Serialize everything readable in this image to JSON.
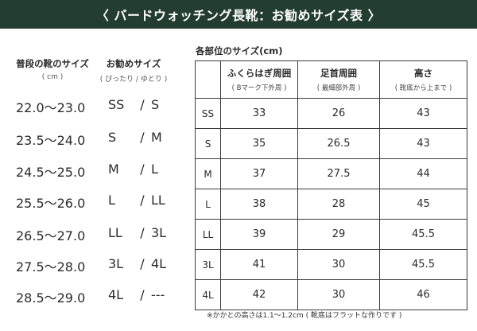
{
  "title": "〈 バードウォッチング長靴：お勧めサイズ表 〉",
  "left_table": {
    "header_size": "普段の靴のサイズ",
    "header_size_unit": "( cm )",
    "header_recommended": "お勧めサイズ",
    "header_recommended_sub": "( ぴったり / ゆとり )",
    "separator": "/",
    "rows": [
      {
        "cm": "22.0〜23.0",
        "snug": "SS",
        "loose": "S"
      },
      {
        "cm": "23.5〜24.0",
        "snug": "S",
        "loose": "M"
      },
      {
        "cm": "24.5〜25.0",
        "snug": "M",
        "loose": "L"
      },
      {
        "cm": "25.5〜26.0",
        "snug": "L",
        "loose": "LL"
      },
      {
        "cm": "26.5〜27.0",
        "snug": "LL",
        "loose": "3L"
      },
      {
        "cm": "27.5〜28.0",
        "snug": "3L",
        "loose": "4L"
      },
      {
        "cm": "28.5〜29.0",
        "snug": "4L",
        "loose": "---"
      }
    ]
  },
  "right_table": {
    "title": "各部位のサイズ(cm)",
    "columns": [
      {
        "label": "ふくらはぎ周囲",
        "sub": "( Bマーク下外周 )"
      },
      {
        "label": "足首周囲",
        "sub": "( 最細部外周 )"
      },
      {
        "label": "高さ",
        "sub": "( 靴底から上まで )"
      }
    ],
    "rows": [
      {
        "size": "SS",
        "calf": "33",
        "ankle": "26",
        "height": "43"
      },
      {
        "size": "S",
        "calf": "35",
        "ankle": "26.5",
        "height": "43"
      },
      {
        "size": "M",
        "calf": "37",
        "ankle": "27.5",
        "height": "44"
      },
      {
        "size": "L",
        "calf": "38",
        "ankle": "28",
        "height": "45"
      },
      {
        "size": "LL",
        "calf": "39",
        "ankle": "29",
        "height": "45.5"
      },
      {
        "size": "3L",
        "calf": "41",
        "ankle": "30",
        "height": "45.5"
      },
      {
        "size": "4L",
        "calf": "42",
        "ankle": "30",
        "height": "46"
      }
    ]
  },
  "footnote": "※かかとの高さは1.1〜1.2cm ( 靴底はフラットな作りです )",
  "colors": {
    "banner": "#243d31",
    "text": "#2a2a2a",
    "border": "#3a3a3a"
  }
}
